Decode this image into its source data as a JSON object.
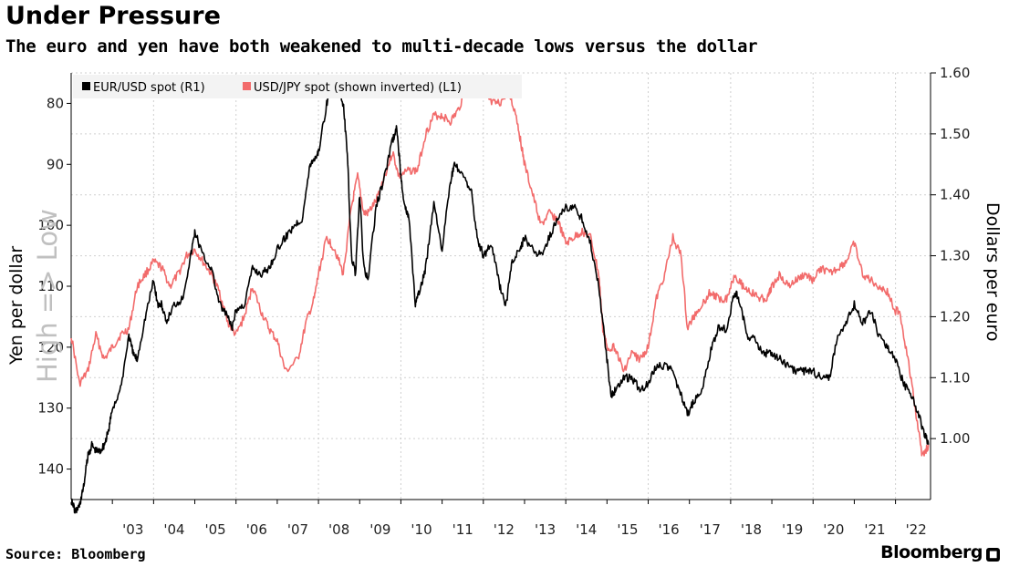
{
  "header": {
    "title": "Under Pressure",
    "subtitle": "The euro and yen have both weakened to multi-decade lows versus the dollar"
  },
  "footer": {
    "source": "Source: Bloomberg",
    "brand": "Bloomberg",
    "brand_icon": "bloomberg-terminal-icon"
  },
  "colors": {
    "eur": "#000000",
    "jpy": "#f26b6b",
    "grid": "#cfcfcf",
    "watermark": "#c0c0c0"
  },
  "chart_data": {
    "type": "line",
    "title": "Under Pressure",
    "subtitle": "The euro and yen have both weakened to multi-decade lows versus the dollar",
    "x_ticks": [
      "'03",
      "'04",
      "'05",
      "'06",
      "'07",
      "'08",
      "'09",
      "'10",
      "'11",
      "'12",
      "'13",
      "'14",
      "'15",
      "'16",
      "'17",
      "'18",
      "'19",
      "'20",
      "'21",
      "'22"
    ],
    "x_range": [
      2002.0,
      2022.85
    ],
    "left_axis": {
      "label": "Yen per dollar",
      "ticks": [
        "80",
        "90",
        "100",
        "110",
        "120",
        "130",
        "140"
      ],
      "range": [
        75,
        145
      ],
      "inverted": true,
      "annotation": "High => Low"
    },
    "right_axis": {
      "label": "Dollars per euro",
      "ticks": [
        "1.60",
        "1.50",
        "1.40",
        "1.30",
        "1.20",
        "1.10",
        "1.00"
      ],
      "range": [
        0.9,
        1.6
      ]
    },
    "legend_position": "top-left",
    "grid": true,
    "series": [
      {
        "name": "EUR/USD spot (R1)",
        "axis": "right",
        "x": [
          2002.0,
          2002.1,
          2002.2,
          2002.3,
          2002.4,
          2002.5,
          2002.6,
          2002.7,
          2002.8,
          2002.9,
          2003.0,
          2003.2,
          2003.4,
          2003.5,
          2003.6,
          2003.8,
          2004.0,
          2004.1,
          2004.2,
          2004.3,
          2004.5,
          2004.7,
          2004.9,
          2005.0,
          2005.2,
          2005.4,
          2005.6,
          2005.8,
          2005.9,
          2006.0,
          2006.2,
          2006.4,
          2006.6,
          2006.8,
          2007.0,
          2007.2,
          2007.4,
          2007.6,
          2007.8,
          2007.9,
          2008.0,
          2008.2,
          2008.3,
          2008.5,
          2008.6,
          2008.7,
          2008.8,
          2008.9,
          2009.0,
          2009.1,
          2009.2,
          2009.4,
          2009.6,
          2009.8,
          2009.9,
          2010.0,
          2010.1,
          2010.2,
          2010.35,
          2010.45,
          2010.6,
          2010.8,
          2011.0,
          2011.2,
          2011.3,
          2011.5,
          2011.7,
          2011.85,
          2012.0,
          2012.2,
          2012.4,
          2012.55,
          2012.7,
          2012.9,
          2013.0,
          2013.2,
          2013.4,
          2013.6,
          2013.8,
          2014.0,
          2014.2,
          2014.4,
          2014.6,
          2014.8,
          2015.0,
          2015.1,
          2015.2,
          2015.4,
          2015.6,
          2015.8,
          2016.0,
          2016.2,
          2016.4,
          2016.6,
          2016.8,
          2016.95,
          2017.1,
          2017.3,
          2017.5,
          2017.7,
          2017.9,
          2018.1,
          2018.2,
          2018.4,
          2018.6,
          2018.8,
          2019.0,
          2019.2,
          2019.4,
          2019.6,
          2019.8,
          2020.0,
          2020.2,
          2020.4,
          2020.6,
          2020.8,
          2021.0,
          2021.2,
          2021.4,
          2021.6,
          2021.8,
          2022.0,
          2022.2,
          2022.4,
          2022.55,
          2022.7,
          2022.8
        ],
        "y": [
          0.9,
          0.88,
          0.89,
          0.92,
          0.97,
          0.99,
          0.98,
          0.98,
          0.99,
          1.01,
          1.05,
          1.08,
          1.17,
          1.14,
          1.13,
          1.2,
          1.26,
          1.22,
          1.22,
          1.19,
          1.22,
          1.23,
          1.3,
          1.34,
          1.3,
          1.28,
          1.22,
          1.2,
          1.18,
          1.21,
          1.22,
          1.28,
          1.27,
          1.28,
          1.31,
          1.33,
          1.35,
          1.36,
          1.45,
          1.46,
          1.47,
          1.55,
          1.58,
          1.57,
          1.55,
          1.47,
          1.3,
          1.27,
          1.4,
          1.28,
          1.26,
          1.38,
          1.43,
          1.49,
          1.51,
          1.43,
          1.38,
          1.36,
          1.22,
          1.24,
          1.28,
          1.39,
          1.31,
          1.42,
          1.45,
          1.43,
          1.41,
          1.33,
          1.3,
          1.32,
          1.25,
          1.22,
          1.29,
          1.31,
          1.33,
          1.31,
          1.3,
          1.33,
          1.36,
          1.38,
          1.38,
          1.36,
          1.32,
          1.25,
          1.13,
          1.07,
          1.08,
          1.1,
          1.1,
          1.08,
          1.09,
          1.12,
          1.12,
          1.11,
          1.07,
          1.04,
          1.06,
          1.08,
          1.14,
          1.18,
          1.18,
          1.24,
          1.23,
          1.17,
          1.16,
          1.14,
          1.14,
          1.13,
          1.12,
          1.11,
          1.11,
          1.11,
          1.1,
          1.1,
          1.17,
          1.19,
          1.22,
          1.19,
          1.21,
          1.17,
          1.15,
          1.13,
          1.09,
          1.07,
          1.04,
          1.01,
          0.99
        ]
      },
      {
        "name": "USD/JPY spot (shown inverted) (L1)",
        "axis": "left",
        "x": [
          2002.0,
          2002.2,
          2002.4,
          2002.6,
          2002.8,
          2003.0,
          2003.2,
          2003.4,
          2003.6,
          2003.8,
          2004.0,
          2004.2,
          2004.4,
          2004.6,
          2004.8,
          2005.0,
          2005.2,
          2005.4,
          2005.6,
          2005.8,
          2006.0,
          2006.2,
          2006.4,
          2006.6,
          2006.8,
          2007.0,
          2007.2,
          2007.5,
          2007.7,
          2007.9,
          2008.0,
          2008.2,
          2008.4,
          2008.6,
          2008.8,
          2008.95,
          2009.1,
          2009.2,
          2009.4,
          2009.6,
          2009.8,
          2009.95,
          2010.2,
          2010.4,
          2010.6,
          2010.8,
          2011.0,
          2011.2,
          2011.4,
          2011.6,
          2011.8,
          2012.0,
          2012.2,
          2012.4,
          2012.6,
          2012.8,
          2012.9,
          2013.0,
          2013.2,
          2013.4,
          2013.6,
          2013.8,
          2014.0,
          2014.2,
          2014.4,
          2014.6,
          2014.8,
          2014.9,
          2015.0,
          2015.2,
          2015.4,
          2015.6,
          2015.8,
          2016.0,
          2016.2,
          2016.4,
          2016.6,
          2016.8,
          2016.95,
          2017.1,
          2017.3,
          2017.5,
          2017.7,
          2017.9,
          2018.1,
          2018.3,
          2018.5,
          2018.7,
          2018.9,
          2019.0,
          2019.2,
          2019.4,
          2019.6,
          2019.8,
          2020.0,
          2020.2,
          2020.4,
          2020.6,
          2020.8,
          2021.0,
          2021.2,
          2021.4,
          2021.6,
          2021.8,
          2022.0,
          2022.1,
          2022.3,
          2022.5,
          2022.65,
          2022.8
        ],
        "y": [
          118,
          126,
          124,
          118,
          122,
          120,
          118,
          117,
          110,
          108,
          106,
          107,
          110,
          108,
          105,
          104,
          106,
          108,
          111,
          116,
          118,
          115,
          110,
          114,
          117,
          119,
          124,
          122,
          116,
          112,
          108,
          102,
          104,
          108,
          97,
          92,
          98,
          98,
          96,
          92,
          88,
          92,
          91,
          91,
          85,
          82,
          82,
          83,
          81,
          77,
          77,
          78,
          80,
          80,
          78,
          82,
          86,
          90,
          95,
          100,
          98,
          99,
          103,
          102,
          101,
          102,
          108,
          117,
          120,
          120,
          124,
          121,
          122,
          120,
          112,
          108,
          102,
          105,
          117,
          115,
          113,
          111,
          112,
          112,
          108,
          110,
          111,
          112,
          112,
          110,
          108,
          110,
          109,
          108,
          109,
          107,
          108,
          107,
          106,
          103,
          108,
          109,
          110,
          111,
          114,
          114,
          122,
          131,
          138,
          136
        ]
      }
    ]
  }
}
